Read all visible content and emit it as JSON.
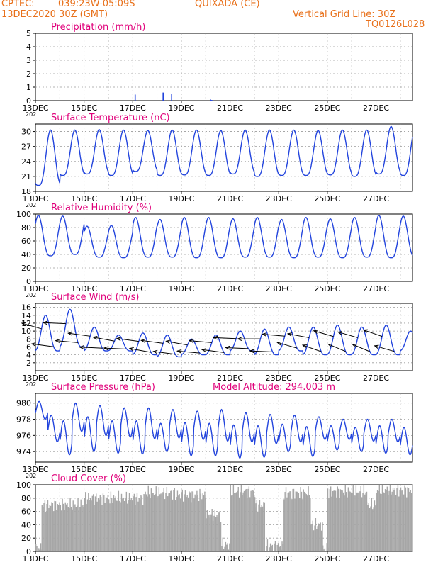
{
  "header": {
    "source": "CPTEC:",
    "coords": "039:23W-05:09S",
    "location": "QUIXADA (CE)",
    "run": "13DEC2020 30Z (GMT)",
    "grid_note": "Vertical Grid Line: 30Z",
    "code": "TQ0126L028",
    "altitude_note": "Model Altitude: 294.003 m"
  },
  "colors": {
    "header": "#e8701a",
    "title": "#e0007a",
    "line": "#2244dd",
    "cloud": "#a6a6a6",
    "grid": "#9a9a9a"
  },
  "x_ticks": [
    "13DEC",
    "15DEC",
    "17DEC",
    "19DEC",
    "21DEC",
    "23DEC",
    "25DEC",
    "27DEC"
  ],
  "chart_data": [
    {
      "id": "precip",
      "type": "bar",
      "title": "Precipitation (mm/h)",
      "ylim": [
        0,
        5
      ],
      "yticks": [
        0,
        1,
        2,
        3,
        4,
        5
      ],
      "x_range_days": [
        13,
        28.5
      ],
      "points": [
        [
          17.1,
          0.45
        ],
        [
          18.25,
          0.6
        ],
        [
          18.6,
          0.5
        ],
        [
          20.2,
          0.08
        ],
        [
          20.25,
          0.05
        ],
        [
          21.3,
          0.02
        ]
      ]
    },
    {
      "id": "temp",
      "type": "line",
      "title": "Surface Temperature (nC)",
      "ylim": [
        18,
        31.5
      ],
      "yticks": [
        18,
        21,
        24,
        27,
        30
      ],
      "x_range_days": [
        13,
        28.5
      ],
      "diurnal": {
        "minima": [
          19.2,
          21.2,
          21.5,
          21.2,
          22.0,
          21.2,
          21.3,
          21.2,
          21.5,
          21.0,
          21.2,
          21.2,
          21.3,
          21.0,
          21.5,
          21.2
        ],
        "maxima": [
          30.3,
          30.3,
          30.4,
          30.3,
          30.2,
          30.3,
          30.3,
          30.2,
          30.3,
          30.3,
          30.3,
          30.2,
          30.3,
          30.3,
          31.0
        ]
      }
    },
    {
      "id": "rh",
      "type": "line",
      "title": "Relative Humidity (%)",
      "ylim": [
        0,
        100
      ],
      "yticks": [
        0,
        20,
        40,
        60,
        80,
        100
      ],
      "x_range_days": [
        13,
        28.5
      ],
      "diurnal": {
        "maxima": [
          98,
          97,
          82,
          83,
          95,
          92,
          95,
          95,
          93,
          95,
          92,
          95,
          93,
          95,
          98,
          97
        ],
        "minima": [
          38,
          40,
          36,
          35,
          36,
          36,
          35,
          35,
          36,
          36,
          35,
          36,
          35,
          36,
          35,
          36
        ]
      }
    },
    {
      "id": "wind",
      "type": "line",
      "title": "Surface Wind (m/s)",
      "ylim": [
        0,
        17
      ],
      "yticks": [
        2,
        4,
        6,
        8,
        10,
        12,
        14,
        16
      ],
      "x_range_days": [
        13,
        28.5
      ],
      "diurnal": {
        "maxima": [
          14,
          15.5,
          11,
          9,
          9.5,
          9,
          8,
          9,
          10,
          10.5,
          11,
          11,
          11.5,
          11,
          11.5,
          10
        ],
        "minima": [
          5,
          6,
          5,
          5,
          4,
          3.5,
          4,
          4,
          5,
          4,
          5,
          4,
          4,
          4,
          4,
          5
        ]
      },
      "arrow_days": [
        13.25,
        13.75,
        14.25,
        14.75,
        15.25,
        15.75,
        16.25,
        16.75,
        17.25,
        17.75,
        18.25,
        18.75,
        19.25,
        19.75,
        20.25,
        20.75,
        21.25,
        21.75,
        22.25,
        22.75,
        23.25,
        23.75,
        24.25,
        24.75,
        25.25,
        25.75,
        26.25,
        26.75,
        27.25,
        27.75
      ],
      "arrow_dirs_deg": [
        150,
        165,
        175,
        170,
        165,
        175,
        160,
        175,
        165,
        160,
        165,
        165,
        160,
        170,
        170,
        165,
        175,
        175,
        180,
        175,
        170,
        150,
        160,
        145,
        150,
        140,
        150,
        140,
        145,
        150
      ]
    },
    {
      "id": "pres",
      "type": "line",
      "title": "Surface Pressure (hPa)",
      "ylim": [
        972.7,
        981.2
      ],
      "yticks": [
        974,
        976,
        978,
        980
      ],
      "x_range_days": [
        13,
        28.5
      ],
      "diurnal": {
        "maxima": [
          980.2,
          978.5,
          977.8,
          980.0,
          978.3,
          979.7,
          977.8,
          979.4,
          977.8,
          979.4,
          977.5,
          979.2,
          977.6,
          979.0,
          977.5,
          979.2,
          977.3,
          978.8,
          977.2,
          978.6,
          977.4,
          978.5,
          977.1,
          978.3,
          977.2,
          978.0,
          977.0,
          978.0,
          977.2,
          978.0,
          977.0
        ],
        "minima": [
          978.0,
          975.2,
          973.6,
          976.5,
          974.0,
          976.0,
          973.8,
          975.8,
          973.7,
          975.6,
          974.0,
          975.7,
          973.5,
          975.5,
          973.5,
          975.3,
          973.2,
          975.2,
          973.3,
          975.0,
          974.0,
          975.2,
          973.4,
          975.5,
          974.2,
          975.5,
          974.0,
          975.3,
          973.8,
          975.2,
          973.6
        ]
      }
    },
    {
      "id": "cloud",
      "type": "bar",
      "title": "Cloud Cover (%)",
      "ylim": [
        0,
        100
      ],
      "yticks": [
        0,
        20,
        40,
        60,
        80,
        100
      ],
      "x_range_days": [
        13,
        28.5
      ],
      "segments_pct": [
        [
          13.0,
          13.25,
          5
        ],
        [
          13.25,
          15.0,
          70
        ],
        [
          15.0,
          17.5,
          80
        ],
        [
          17.5,
          18.7,
          88
        ],
        [
          18.7,
          20.0,
          85
        ],
        [
          20.0,
          20.6,
          55
        ],
        [
          20.6,
          21.0,
          10
        ],
        [
          21.0,
          22.0,
          90
        ],
        [
          22.0,
          22.4,
          70
        ],
        [
          22.4,
          23.2,
          8
        ],
        [
          23.2,
          24.3,
          88
        ],
        [
          24.3,
          24.8,
          40
        ],
        [
          24.8,
          25.0,
          5
        ],
        [
          25.0,
          26.6,
          90
        ],
        [
          26.6,
          27.0,
          70
        ],
        [
          27.0,
          28.5,
          92
        ]
      ]
    }
  ]
}
